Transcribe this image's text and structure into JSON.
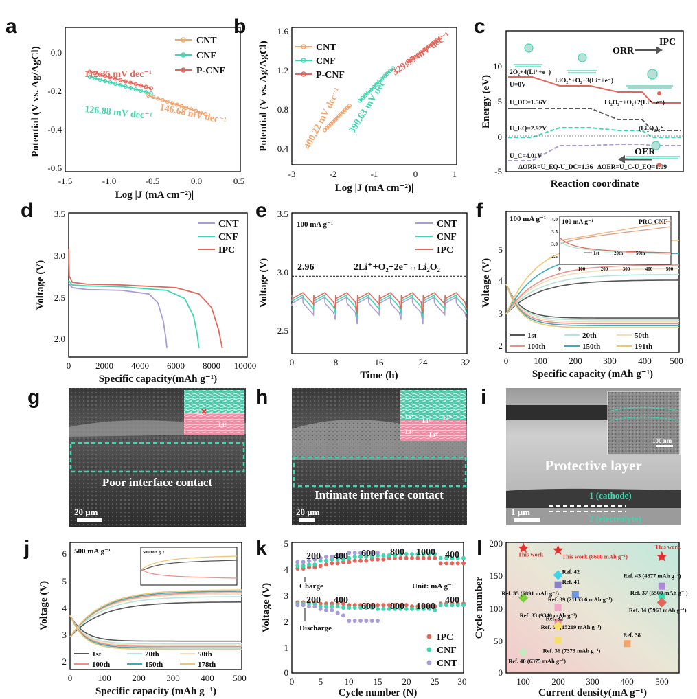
{
  "colors": {
    "cnt": "#f4a36b",
    "cnf": "#3ed6ae",
    "ipc": "#e2665a",
    "cnt_violet": "#a99bd6",
    "dark": "#555555"
  },
  "panels": {
    "a": {
      "label": "a",
      "ylabel": "Potential (V vs. Ag/AgCl)",
      "xlabel": "Log |J (mA cm⁻²)|",
      "xticks": [
        "-1.5",
        "-1.0",
        "-0.5",
        "0.0",
        "0.5"
      ],
      "yticks": [
        "0.0",
        "-0.2",
        "-0.4",
        "-0.6"
      ],
      "legend": [
        "CNT",
        "CNF",
        "P-CNF"
      ],
      "annotations": [
        "112.35 mV dec⁻¹",
        "126.88 mV dec⁻¹",
        "146.68 mV dec⁻¹"
      ]
    },
    "b": {
      "label": "b",
      "ylabel": "Potential (V vs. Ag/AgCl)",
      "xlabel": "Log |J (mA cm⁻²)|",
      "xticks": [
        "-3",
        "-2",
        "-1",
        "0",
        "1"
      ],
      "yticks": [
        "1.6",
        "1.2",
        "0.8",
        "0.4"
      ],
      "legend": [
        "CNT",
        "CNF",
        "P-CNF"
      ],
      "annotations": [
        "400.22 mV dec⁻¹",
        "390.63 mV dec⁻¹",
        "329.95 mV dec⁻¹"
      ]
    },
    "c": {
      "label": "c",
      "tag": "IPC",
      "ylabel": "Energy (eV)",
      "xlabel": "Reaction coordinate",
      "yticks": [
        "10",
        "5",
        "0",
        "-5"
      ],
      "orr": "ORR",
      "oer": "OER",
      "states": [
        "2O₂+4(Li⁺+e⁻)",
        "LiO₂⁺+O₂+3(Li⁺+e⁻)",
        "Li₂O₂⁺+O₂+2(Li⁺+e⁻)",
        "(Li₂O₂)₂⁺"
      ],
      "potentials": [
        "U=0V",
        "U_DC=1.56V",
        "U_EQ=2.92V",
        "U_C=4.01V"
      ],
      "footer": [
        "ΔORR=U_EQ-U_DC=1.36",
        "ΔOER=U_C-U_EQ=1.09"
      ]
    },
    "d": {
      "label": "d",
      "ylabel": "Voltage (V)",
      "xlabel": "Specific capacity(mAh g⁻¹)",
      "xticks": [
        "0",
        "2000",
        "4000",
        "6000",
        "8000",
        "10000"
      ],
      "yticks": [
        "3.5",
        "3.0",
        "2.5",
        "2.0"
      ],
      "legend": [
        "CNT",
        "CNF",
        "IPC"
      ]
    },
    "e": {
      "label": "e",
      "ylabel": "Voltage (V)",
      "xlabel": "Time (h)",
      "rate": "100 mA g⁻¹",
      "ref_value": "2.96",
      "reaction": "2Li⁺+O₂+2e⁻↔Li₂O₂",
      "xticks": [
        "0",
        "8",
        "16",
        "24",
        "32"
      ],
      "yticks": [
        "3.5",
        "3.0",
        "2.5"
      ],
      "legend": [
        "CNT",
        "CNF",
        "IPC"
      ]
    },
    "f": {
      "label": "f",
      "ylabel": "Voltage (V)",
      "xlabel": "Specific capacity (mAh g⁻¹)",
      "rate": "100 mA g⁻¹",
      "inset_rate": "100 mA g⁻¹",
      "inset_tag": "PRC-CNF",
      "inset_legend": [
        "1st",
        "20th",
        "50th"
      ],
      "inset_xticks": [
        "0",
        "100",
        "200",
        "300",
        "400",
        "500"
      ],
      "inset_yticks": [
        "4.0",
        "3.5",
        "3.0",
        "2.5"
      ],
      "xticks": [
        "0",
        "100",
        "200",
        "300",
        "400",
        "500"
      ],
      "yticks": [
        "5",
        "4",
        "3",
        "2"
      ],
      "legend": [
        "1st",
        "20th",
        "50th",
        "100th",
        "150th",
        "191th"
      ]
    },
    "g": {
      "label": "g",
      "caption": "Poor interface contact",
      "scale": "20 μm"
    },
    "h": {
      "label": "h",
      "caption": "Intimate interface contact",
      "scale": "20 μm"
    },
    "i": {
      "label": "i",
      "caption": "Protective layer",
      "scale": "1 μm",
      "inset_scale": "100 nm",
      "layer1": "1 (cathode)",
      "layer2": "2 (electrolyte)"
    },
    "j": {
      "label": "j",
      "ylabel": "Voltage (V)",
      "xlabel": "Specific capacity (mAh g⁻¹)",
      "rate": "500 mA g⁻¹",
      "inset_rate": "500 mA g⁻¹",
      "xticks": [
        "0",
        "100",
        "200",
        "300",
        "400",
        "500"
      ],
      "yticks": [
        "6",
        "5",
        "4",
        "3",
        "2"
      ],
      "legend": [
        "1st",
        "20th",
        "50th",
        "100th",
        "150th",
        "178th"
      ]
    },
    "k": {
      "label": "k",
      "ylabel": "Voltage (V)",
      "xlabel": "Cycle number (N)",
      "unit": "Unit: mA g⁻¹",
      "charge": "Charge",
      "discharge": "Discharge",
      "rates_top": [
        "200",
        "400",
        "600",
        "800",
        "1000",
        "400"
      ],
      "rates_bottom": [
        "200",
        "400",
        "600",
        "800",
        "1000",
        "400"
      ],
      "xticks": [
        "0",
        "5",
        "10",
        "15",
        "20",
        "25",
        "30"
      ],
      "yticks": [
        "5",
        "4",
        "3",
        "2",
        "1",
        "0"
      ],
      "legend": [
        "IPC",
        "CNF",
        "CNT"
      ]
    },
    "l": {
      "label": "l",
      "ylabel": "Cycle number",
      "xlabel": "Current density(mA g⁻¹)",
      "xticks": [
        "100",
        "200",
        "300",
        "400",
        "500"
      ],
      "yticks": [
        "200",
        "150",
        "100",
        "50",
        "0"
      ],
      "labels": [
        "This work",
        "This work (8600 mAh g⁻¹)",
        "This work",
        "Ref. 42",
        "Ref. 41",
        "Ref. 43 (4877 mAh g⁻¹)",
        "Ref. 35 (6891 mAh g⁻¹)",
        "Ref. 37 (5500 mAh g⁻¹)",
        "Ref. 39 (21153.6 mAh g⁻¹)",
        "Ref. 34 (5963 mAh g⁻¹)",
        "Ref. 33 (9340 mAh g⁻¹)",
        "Ref. 30 (15219 mAh g⁻¹)",
        "Ref. 32",
        "Ref. 38",
        "Ref. 36 (7373 mAh g⁻¹)",
        "Ref. 40 (6375 mAh g⁻¹)"
      ]
    }
  },
  "chart_data": [
    {
      "panel": "a",
      "type": "line",
      "xlabel": "Log |J (mA cm⁻²)|",
      "ylabel": "Potential (V vs. Ag/AgCl)",
      "xlim": [
        -1.5,
        0.5
      ],
      "ylim": [
        -0.6,
        0.1
      ],
      "series": [
        {
          "name": "CNT",
          "x": [
            -0.55,
            0.1
          ],
          "y": [
            -0.23,
            -0.32
          ]
        },
        {
          "name": "CNF",
          "x": [
            -1.22,
            -0.52
          ],
          "y": [
            -0.14,
            -0.22
          ]
        },
        {
          "name": "P-CNF",
          "x": [
            -1.22,
            -0.52
          ],
          "y": [
            -0.115,
            -0.195
          ]
        }
      ]
    },
    {
      "panel": "b",
      "type": "line",
      "xlabel": "Log |J (mA cm⁻²)|",
      "ylabel": "Potential (V vs. Ag/AgCl)",
      "xlim": [
        -3,
        1
      ],
      "ylim": [
        0.25,
        1.6
      ],
      "series": [
        {
          "name": "CNT",
          "x": [
            -2.2,
            -1.6
          ],
          "y": [
            0.59,
            0.83
          ]
        },
        {
          "name": "CNF",
          "x": [
            -1.35,
            -0.55
          ],
          "y": [
            0.88,
            1.2
          ]
        },
        {
          "name": "P-CNF",
          "x": [
            -0.2,
            0.6
          ],
          "y": [
            1.25,
            1.5
          ]
        }
      ]
    },
    {
      "panel": "d",
      "type": "line",
      "xlabel": "Specific capacity(mAh g⁻¹)",
      "ylabel": "Voltage (V)",
      "xlim": [
        0,
        10000
      ],
      "ylim": [
        1.9,
        3.5
      ],
      "series": [
        {
          "name": "CNT",
          "x": [
            0,
            200,
            1000,
            3000,
            4500,
            5000,
            5300,
            5450,
            5500
          ],
          "y": [
            2.72,
            2.67,
            2.65,
            2.64,
            2.6,
            2.5,
            2.3,
            2.1,
            2.0
          ]
        },
        {
          "name": "CNF",
          "x": [
            0,
            200,
            1000,
            3000,
            5500,
            6500,
            7000,
            7200,
            7300
          ],
          "y": [
            2.75,
            2.7,
            2.69,
            2.68,
            2.64,
            2.55,
            2.35,
            2.15,
            2.0
          ]
        },
        {
          "name": "IPC",
          "x": [
            0,
            30,
            200,
            1000,
            3000,
            6000,
            7300,
            8000,
            8400,
            8600
          ],
          "y": [
            3.1,
            2.8,
            2.73,
            2.71,
            2.7,
            2.67,
            2.6,
            2.45,
            2.2,
            2.0
          ]
        }
      ]
    },
    {
      "panel": "e",
      "type": "line",
      "xlabel": "Time (h)",
      "ylabel": "Voltage (V)",
      "xlim": [
        0,
        32
      ],
      "ylim": [
        2.3,
        3.5
      ],
      "reference_y": 2.96,
      "cycles": 8,
      "cycle_hours": 4,
      "series": [
        {
          "name": "CNT",
          "charge": 2.78,
          "discharge": 2.63
        },
        {
          "name": "CNF",
          "charge": 2.8,
          "discharge": 2.68
        },
        {
          "name": "IPC",
          "charge": 2.82,
          "discharge": 2.72
        }
      ]
    },
    {
      "panel": "f",
      "type": "line",
      "xlabel": "Specific capacity (mAh g⁻¹)",
      "ylabel": "Voltage (V)",
      "xlim": [
        0,
        500
      ],
      "ylim": [
        1.8,
        5.5
      ],
      "series": [
        {
          "name": "1st",
          "charge_end": 3.7,
          "discharge_end": 2.7
        },
        {
          "name": "20th",
          "charge_end": 3.85,
          "discharge_end": 2.65
        },
        {
          "name": "50th",
          "charge_end": 4.0,
          "discharge_end": 2.6
        },
        {
          "name": "100th",
          "charge_end": 4.1,
          "discharge_end": 2.55
        },
        {
          "name": "150th",
          "charge_end": 4.4,
          "discharge_end": 2.5
        },
        {
          "name": "191th",
          "charge_end": 4.75,
          "discharge_end": 2.45
        }
      ]
    },
    {
      "panel": "j",
      "type": "line",
      "xlabel": "Specific capacity (mAh g⁻¹)",
      "ylabel": "Voltage (V)",
      "xlim": [
        0,
        500
      ],
      "ylim": [
        1.6,
        6.3
      ],
      "series": [
        {
          "name": "1st",
          "charge_end": 4.1,
          "discharge_end": 2.65
        },
        {
          "name": "20th",
          "charge_end": 4.3,
          "discharge_end": 2.55
        },
        {
          "name": "50th",
          "charge_end": 4.4,
          "discharge_end": 2.5
        },
        {
          "name": "100th",
          "charge_end": 4.45,
          "discharge_end": 2.45
        },
        {
          "name": "150th",
          "charge_end": 4.5,
          "discharge_end": 2.4
        },
        {
          "name": "178th",
          "charge_end": 4.55,
          "discharge_end": 2.35
        }
      ]
    },
    {
      "panel": "k",
      "type": "scatter",
      "xlabel": "Cycle number (N)",
      "ylabel": "Voltage (V)",
      "xlim": [
        0,
        30
      ],
      "ylim": [
        0,
        5
      ],
      "series": [
        {
          "name": "IPC",
          "charge": [
            4.0,
            4.0,
            4.05,
            4.05,
            4.1,
            4.15,
            4.2,
            4.2,
            4.25,
            4.25,
            4.3,
            4.3,
            4.3,
            4.35,
            4.35,
            4.35,
            4.4,
            4.4,
            4.4,
            4.4,
            4.4,
            4.4,
            4.4,
            4.4,
            4.4,
            4.2,
            4.2,
            4.2,
            4.2,
            4.2
          ],
          "discharge": [
            2.7,
            2.7,
            2.7,
            2.7,
            2.65,
            2.65,
            2.65,
            2.65,
            2.65,
            2.6,
            2.6,
            2.6,
            2.6,
            2.6,
            2.6,
            2.6,
            2.6,
            2.6,
            2.6,
            2.6,
            2.55,
            2.55,
            2.55,
            2.55,
            2.55,
            2.65,
            2.65,
            2.65,
            2.65,
            2.65
          ]
        },
        {
          "name": "CNF",
          "charge": [
            4.1,
            4.1,
            4.15,
            4.15,
            4.3,
            4.3,
            4.35,
            4.35,
            4.35,
            4.4,
            4.45,
            4.45,
            4.45,
            4.45,
            4.5,
            4.5,
            4.5,
            4.5,
            4.55,
            4.55,
            4.55,
            4.55,
            4.55,
            4.55,
            4.55,
            4.4,
            4.4,
            4.4,
            4.4,
            4.4
          ],
          "discharge": [
            2.65,
            2.65,
            2.65,
            2.65,
            2.55,
            2.55,
            2.55,
            2.55,
            2.5,
            2.5,
            2.5,
            2.5,
            2.5,
            2.5,
            2.45,
            2.45,
            2.45,
            2.45,
            2.45,
            2.45,
            2.45,
            2.45,
            2.45,
            2.45,
            2.4,
            2.6,
            2.6,
            2.6,
            2.6,
            2.6
          ]
        },
        {
          "name": "CNT",
          "charge": [
            4.25,
            4.25,
            4.3,
            4.35,
            4.4,
            4.45,
            4.45,
            4.5,
            4.5,
            4.6,
            4.6,
            4.6,
            4.6,
            4.6,
            4.6
          ],
          "discharge": [
            2.6,
            2.6,
            2.55,
            2.55,
            2.45,
            2.4,
            2.4,
            2.3,
            2.2,
            2.0,
            2.0,
            2.0,
            2.0,
            2.0,
            2.0
          ]
        }
      ]
    },
    {
      "panel": "l",
      "type": "scatter",
      "xlabel": "Current density(mA g⁻¹)",
      "ylabel": "Cycle number",
      "xlim": [
        50,
        550
      ],
      "ylim": [
        0,
        200
      ],
      "points": [
        {
          "label": "This work",
          "x": 100,
          "y": 191
        },
        {
          "label": "This work (8600 mAh g⁻¹)",
          "x": 200,
          "y": 188
        },
        {
          "label": "This work",
          "x": 500,
          "y": 178
        },
        {
          "label": "Ref. 42",
          "x": 200,
          "y": 150
        },
        {
          "label": "Ref. 41",
          "x": 200,
          "y": 135
        },
        {
          "label": "Ref. 43 (4877 mAh g⁻¹)",
          "x": 500,
          "y": 133
        },
        {
          "label": "Ref. 35 (6891 mAh g⁻¹)",
          "x": 100,
          "y": 115
        },
        {
          "label": "Ref. 37 (5500 mAh g⁻¹)",
          "x": 500,
          "y": 118
        },
        {
          "label": "Ref. 39 (21153.6 mAh g⁻¹)",
          "x": 250,
          "y": 120
        },
        {
          "label": "Ref. 34 (5963 mAh g⁻¹)",
          "x": 500,
          "y": 108
        },
        {
          "label": "Ref. 33 (9340 mAh g⁻¹)",
          "x": 200,
          "y": 100
        },
        {
          "label": "Ref. 30 (15219 mAh g⁻¹)",
          "x": 200,
          "y": 78
        },
        {
          "label": "Ref. 32",
          "x": 200,
          "y": 72
        },
        {
          "label": "Ref. 38",
          "x": 400,
          "y": 45
        },
        {
          "label": "Ref. 36 (7373 mAh g⁻¹)",
          "x": 200,
          "y": 50
        },
        {
          "label": "Ref. 40 (6375 mAh g⁻¹)",
          "x": 100,
          "y": 32
        }
      ]
    }
  ]
}
